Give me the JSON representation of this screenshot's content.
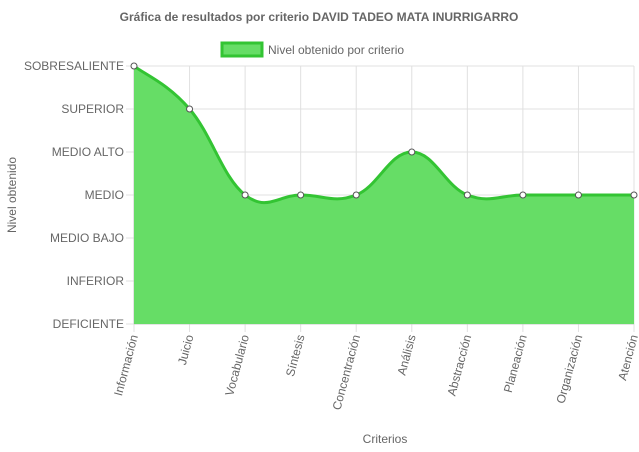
{
  "chart_data": {
    "type": "area",
    "title": "Gráfica de resultados por criterio DAVID TADEO MATA INURRIGARRO",
    "xlabel": "Criterios",
    "ylabel": "Nivel obtenido",
    "legend_position": "top",
    "grid": true,
    "y_levels": [
      "DEFICIENTE",
      "INFERIOR",
      "MEDIO BAJO",
      "MEDIO",
      "MEDIO ALTO",
      "SUPERIOR",
      "SOBRESALIENTE"
    ],
    "ylim": [
      0,
      6
    ],
    "categories": [
      "Información",
      "Juicio",
      "Vocabulario",
      "Síntesis",
      "Concentración",
      "Análisis",
      "Abstracción",
      "Planeación",
      "Organización",
      "Atención"
    ],
    "series": [
      {
        "name": "Nivel obtenido por criterio",
        "values": [
          6,
          5,
          3,
          3,
          3,
          4,
          3,
          3,
          3,
          3
        ],
        "color": "#33c433",
        "fill": "#66dd66"
      }
    ]
  }
}
